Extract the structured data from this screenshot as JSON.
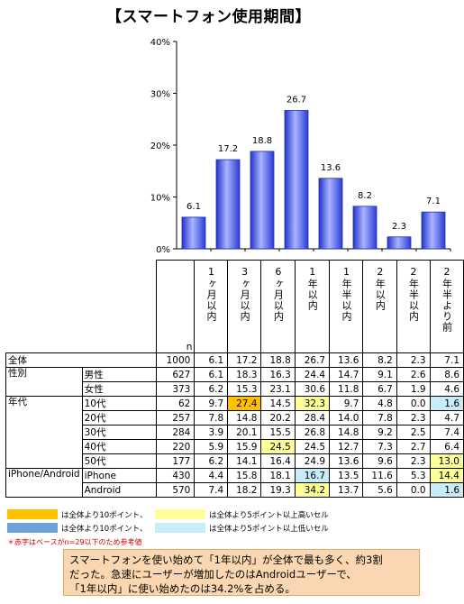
{
  "title": "【スマートフォン使用期間】",
  "chart_data": {
    "type": "bar",
    "categories": [
      "1ヶ月以内",
      "3ヶ月以内",
      "6ヶ月以内",
      "1年以内",
      "1年半以内",
      "2年以内",
      "2年半以内",
      "2年半より前"
    ],
    "values": [
      6.1,
      17.2,
      18.8,
      26.7,
      13.6,
      8.2,
      2.3,
      7.1
    ],
    "value_labels": [
      "6.1",
      "17.2",
      "18.8",
      "26.7",
      "13.6",
      "8.2",
      "2.3",
      "7.1"
    ],
    "ylim": [
      0,
      40
    ],
    "yticks": [
      "0%",
      "10%",
      "20%",
      "30%",
      "40%"
    ],
    "bar_color": "#4a5be6",
    "grid": false
  },
  "table": {
    "headers": [
      "1ヶ月以内",
      "3ヶ月以内",
      "6ヶ月以内",
      "1年以内",
      "1年半以内",
      "2年以内",
      "2年半以内",
      "2年半より前"
    ],
    "n_label": "n",
    "rows": [
      {
        "group": "全体",
        "sub": "",
        "n": "1000",
        "vals": [
          "6.1",
          "17.2",
          "18.8",
          "26.7",
          "13.6",
          "8.2",
          "2.3",
          "7.1"
        ],
        "marks": [
          "",
          "",
          "",
          "",
          "",
          "",
          "",
          ""
        ]
      },
      {
        "group": "性別",
        "sub": "男性",
        "n": "627",
        "vals": [
          "6.1",
          "18.3",
          "16.3",
          "24.4",
          "14.7",
          "9.1",
          "2.6",
          "8.6"
        ],
        "marks": [
          "",
          "",
          "",
          "",
          "",
          "",
          "",
          ""
        ]
      },
      {
        "group": "",
        "sub": "女性",
        "n": "373",
        "vals": [
          "6.2",
          "15.3",
          "23.1",
          "30.6",
          "11.8",
          "6.7",
          "1.9",
          "4.6"
        ],
        "marks": [
          "",
          "",
          "",
          "",
          "",
          "",
          "",
          ""
        ]
      },
      {
        "group": "年代",
        "sub": "10代",
        "n": "62",
        "vals": [
          "9.7",
          "27.4",
          "14.5",
          "32.3",
          "9.7",
          "4.8",
          "0.0",
          "1.6"
        ],
        "marks": [
          "",
          "hi",
          "",
          "hl",
          "",
          "",
          "",
          "ll"
        ]
      },
      {
        "group": "",
        "sub": "20代",
        "n": "257",
        "vals": [
          "7.8",
          "14.8",
          "20.2",
          "28.4",
          "14.0",
          "7.8",
          "2.3",
          "4.7"
        ],
        "marks": [
          "",
          "",
          "",
          "",
          "",
          "",
          "",
          ""
        ]
      },
      {
        "group": "",
        "sub": "30代",
        "n": "284",
        "vals": [
          "3.9",
          "20.1",
          "15.5",
          "26.8",
          "14.8",
          "9.2",
          "2.5",
          "7.4"
        ],
        "marks": [
          "",
          "",
          "",
          "",
          "",
          "",
          "",
          ""
        ]
      },
      {
        "group": "",
        "sub": "40代",
        "n": "220",
        "vals": [
          "5.9",
          "15.9",
          "24.5",
          "24.5",
          "12.7",
          "7.3",
          "2.7",
          "6.4"
        ],
        "marks": [
          "",
          "",
          "hl",
          "",
          "",
          "",
          "",
          ""
        ]
      },
      {
        "group": "",
        "sub": "50代",
        "n": "177",
        "vals": [
          "6.2",
          "14.1",
          "16.4",
          "24.9",
          "13.6",
          "9.6",
          "2.3",
          "13.0"
        ],
        "marks": [
          "",
          "",
          "",
          "",
          "",
          "",
          "",
          "hl"
        ]
      },
      {
        "group": "iPhone/Android",
        "sub": "iPhone",
        "n": "430",
        "vals": [
          "4.4",
          "15.8",
          "18.1",
          "16.7",
          "13.5",
          "11.6",
          "5.3",
          "14.4"
        ],
        "marks": [
          "",
          "",
          "",
          "ll",
          "",
          "",
          "",
          "hl"
        ]
      },
      {
        "group": "",
        "sub": "Android",
        "n": "570",
        "vals": [
          "7.4",
          "18.2",
          "19.3",
          "34.2",
          "13.7",
          "5.6",
          "0.0",
          "1.6"
        ],
        "marks": [
          "",
          "",
          "",
          "hl",
          "",
          "",
          "",
          "ll"
        ]
      }
    ]
  },
  "legend": {
    "hi": "は全体より10ポイント、",
    "hl": "は全体より5ポイント以上高いセル",
    "lo": "は全体より10ポイント、",
    "ll": "は全体より5ポイント以上低いセル"
  },
  "note": "＊赤字はベースがn=29以下のため参考値",
  "summary": [
    "スマートフォンを使い始めて「1年以内」が全体で最も多く、約3割",
    "だった。急速にユーザーが増加したのはAndroidユーザーで、",
    "「1年以内」に使い始めたのは34.2%を占める。"
  ]
}
